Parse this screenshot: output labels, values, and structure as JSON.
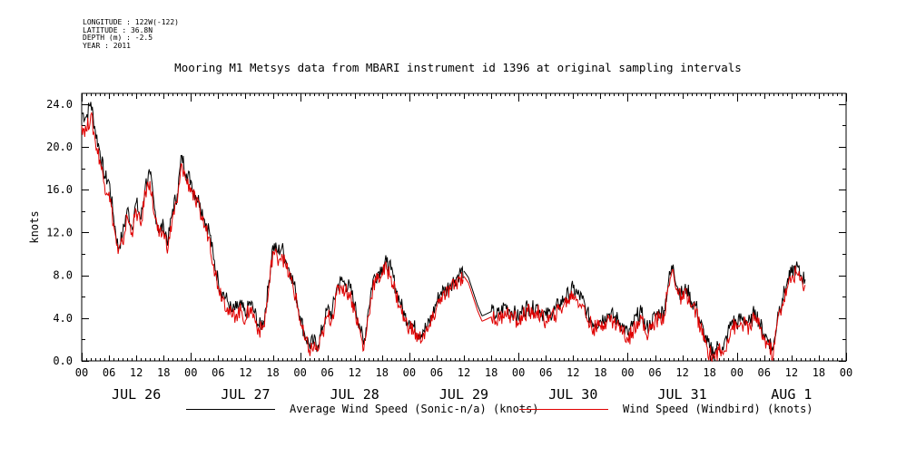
{
  "meta": {
    "longitude": "LONGITUDE : 122W(-122)",
    "latitude": "LATITUDE : 36.8N",
    "depth": "DEPTH (m) : -2.5",
    "year": "YEAR : 2011"
  },
  "chart_data": {
    "type": "line",
    "title": "Mooring M1 Metsys data from MBARI instrument id 1396 at original sampling intervals",
    "ylabel": "knots",
    "xlabel": "",
    "ylim": [
      0,
      25
    ],
    "xlim_hours": [
      0,
      168
    ],
    "y_ticks": [
      "0.0",
      "4.0",
      "8.0",
      "12.0",
      "16.0",
      "20.0",
      "24.0"
    ],
    "x_hour_labels": [
      "00",
      "06",
      "12",
      "18",
      "00",
      "06",
      "12",
      "18",
      "00",
      "06",
      "12",
      "18",
      "00",
      "06",
      "12",
      "18",
      "00",
      "06",
      "12",
      "18",
      "00",
      "06",
      "12",
      "18",
      "00",
      "06",
      "12",
      "18",
      "00"
    ],
    "day_labels": [
      "JUL 26",
      "JUL 27",
      "JUL 28",
      "JUL 29",
      "JUL 30",
      "JUL 31",
      "AUG  1"
    ],
    "grid": false,
    "legend_position": "bottom",
    "series": [
      {
        "name": "Average Wind Speed (Sonic-n/a) (knots)",
        "color": "#000000",
        "gaps": [
          [
            84,
            90
          ]
        ],
        "points": [
          [
            0,
            23.2
          ],
          [
            1,
            22.8
          ],
          [
            2,
            24.2
          ],
          [
            3,
            21.5
          ],
          [
            4,
            19.6
          ],
          [
            5,
            17.2
          ],
          [
            6,
            16.8
          ],
          [
            7,
            13.5
          ],
          [
            8,
            10.5
          ],
          [
            9,
            11.8
          ],
          [
            10,
            14.2
          ],
          [
            11,
            12.5
          ],
          [
            12,
            14.8
          ],
          [
            13,
            13.2
          ],
          [
            14,
            16.5
          ],
          [
            15,
            17.5
          ],
          [
            16,
            14.2
          ],
          [
            17,
            12.2
          ],
          [
            18,
            12.6
          ],
          [
            19,
            11.2
          ],
          [
            20,
            14.2
          ],
          [
            21,
            15.6
          ],
          [
            22,
            19.2
          ],
          [
            23,
            17.5
          ],
          [
            24,
            16.9
          ],
          [
            25,
            15.5
          ],
          [
            26,
            14.8
          ],
          [
            27,
            13.2
          ],
          [
            28,
            12.3
          ],
          [
            29,
            9.5
          ],
          [
            30,
            7.5
          ],
          [
            31,
            6.4
          ],
          [
            32,
            5.6
          ],
          [
            33,
            4.6
          ],
          [
            34,
            4.9
          ],
          [
            35,
            5.2
          ],
          [
            36,
            4.2
          ],
          [
            37,
            5.5
          ],
          [
            38,
            4.5
          ],
          [
            39,
            3.2
          ],
          [
            40,
            3.7
          ],
          [
            41,
            6.8
          ],
          [
            42,
            10.8
          ],
          [
            43,
            10.2
          ],
          [
            44,
            10.6
          ],
          [
            45,
            9.2
          ],
          [
            46,
            8.2
          ],
          [
            47,
            6.5
          ],
          [
            48,
            4.2
          ],
          [
            49,
            2.5
          ],
          [
            50,
            1.5
          ],
          [
            51,
            1.8
          ],
          [
            52,
            1.5
          ],
          [
            53,
            3.2
          ],
          [
            54,
            4.8
          ],
          [
            55,
            4.4
          ],
          [
            56,
            6.8
          ],
          [
            57,
            7.5
          ],
          [
            58,
            7.2
          ],
          [
            59,
            6.8
          ],
          [
            60,
            5.2
          ],
          [
            61,
            3.5
          ],
          [
            62,
            1.5
          ],
          [
            63,
            4.8
          ],
          [
            64,
            7.6
          ],
          [
            65,
            8.2
          ],
          [
            66,
            8.8
          ],
          [
            67,
            9.2
          ],
          [
            68,
            8.5
          ],
          [
            69,
            6.8
          ],
          [
            70,
            5.5
          ],
          [
            71,
            4.2
          ],
          [
            72,
            3.8
          ],
          [
            73,
            3.2
          ],
          [
            74,
            2.5
          ],
          [
            75,
            2.9
          ],
          [
            76,
            3.2
          ],
          [
            77,
            4.2
          ],
          [
            78,
            5.5
          ],
          [
            79,
            6.5
          ],
          [
            80,
            6.6
          ],
          [
            81,
            7.2
          ],
          [
            82,
            7.6
          ],
          [
            83,
            8.2
          ],
          [
            84,
            8.4
          ],
          [
            85,
            7.8
          ],
          [
            86,
            6.5
          ],
          [
            87,
            5.2
          ],
          [
            88,
            4.2
          ],
          [
            89,
            4.4
          ],
          [
            90,
            4.6
          ],
          [
            91,
            4.2
          ],
          [
            92,
            4.5
          ],
          [
            93,
            5.2
          ],
          [
            94,
            4.8
          ],
          [
            95,
            4.5
          ],
          [
            96,
            4.0
          ],
          [
            97,
            4.8
          ],
          [
            98,
            5.1
          ],
          [
            99,
            4.8
          ],
          [
            100,
            5.2
          ],
          [
            101,
            4.6
          ],
          [
            102,
            4.2
          ],
          [
            103,
            4.5
          ],
          [
            104,
            4.8
          ],
          [
            105,
            5.3
          ],
          [
            106,
            5.8
          ],
          [
            107,
            6.2
          ],
          [
            108,
            6.8
          ],
          [
            109,
            6.2
          ],
          [
            110,
            5.8
          ],
          [
            111,
            4.5
          ],
          [
            112,
            3.8
          ],
          [
            113,
            3.5
          ],
          [
            114,
            3.8
          ],
          [
            115,
            4.2
          ],
          [
            116,
            4.4
          ],
          [
            117,
            4.1
          ],
          [
            118,
            3.8
          ],
          [
            119,
            3.2
          ],
          [
            120,
            2.5
          ],
          [
            121,
            3.2
          ],
          [
            122,
            4.2
          ],
          [
            123,
            4.5
          ],
          [
            124,
            3.0
          ],
          [
            125,
            3.4
          ],
          [
            126,
            4.2
          ],
          [
            127,
            4.5
          ],
          [
            128,
            4.7
          ],
          [
            129,
            7.5
          ],
          [
            130,
            9.0
          ],
          [
            131,
            6.8
          ],
          [
            132,
            6.2
          ],
          [
            133,
            6.8
          ],
          [
            134,
            5.5
          ],
          [
            135,
            5.2
          ],
          [
            136,
            3.5
          ],
          [
            137,
            2.2
          ],
          [
            138,
            1.2
          ],
          [
            139,
            0.8
          ],
          [
            140,
            1.5
          ],
          [
            141,
            1.0
          ],
          [
            142,
            2.6
          ],
          [
            143,
            3.8
          ],
          [
            144,
            3.5
          ],
          [
            145,
            4.0
          ],
          [
            146,
            3.8
          ],
          [
            147,
            3.5
          ],
          [
            148,
            4.8
          ],
          [
            149,
            3.5
          ],
          [
            150,
            2.5
          ],
          [
            151,
            2.0
          ],
          [
            152,
            1.0
          ],
          [
            153,
            4.5
          ],
          [
            154,
            5.8
          ],
          [
            155,
            7.2
          ],
          [
            156,
            8.2
          ],
          [
            157,
            8.8
          ],
          [
            158,
            8.0
          ],
          [
            159,
            7.6
          ]
        ]
      },
      {
        "name": "Wind Speed (Windbird) (knots)",
        "color": "#e00000",
        "gaps": [
          [
            84,
            90
          ]
        ],
        "points": [
          [
            0,
            22.0
          ],
          [
            1,
            21.5
          ],
          [
            2,
            23.0
          ],
          [
            3,
            20.5
          ],
          [
            4,
            18.8
          ],
          [
            5,
            16.5
          ],
          [
            6,
            15.8
          ],
          [
            7,
            12.8
          ],
          [
            8,
            10.0
          ],
          [
            9,
            11.0
          ],
          [
            10,
            13.5
          ],
          [
            11,
            12.0
          ],
          [
            12,
            14.0
          ],
          [
            13,
            12.6
          ],
          [
            14,
            15.8
          ],
          [
            15,
            16.8
          ],
          [
            16,
            13.6
          ],
          [
            17,
            11.6
          ],
          [
            18,
            12.0
          ],
          [
            19,
            10.6
          ],
          [
            20,
            13.5
          ],
          [
            21,
            14.8
          ],
          [
            22,
            18.4
          ],
          [
            23,
            16.8
          ],
          [
            24,
            16.2
          ],
          [
            25,
            14.8
          ],
          [
            26,
            14.0
          ],
          [
            27,
            12.6
          ],
          [
            28,
            11.6
          ],
          [
            29,
            9.0
          ],
          [
            30,
            7.0
          ],
          [
            31,
            6.0
          ],
          [
            32,
            5.0
          ],
          [
            33,
            4.1
          ],
          [
            34,
            4.4
          ],
          [
            35,
            4.7
          ],
          [
            36,
            3.8
          ],
          [
            37,
            5.0
          ],
          [
            38,
            4.0
          ],
          [
            39,
            2.8
          ],
          [
            40,
            3.2
          ],
          [
            41,
            6.2
          ],
          [
            42,
            10.2
          ],
          [
            43,
            9.6
          ],
          [
            44,
            10.0
          ],
          [
            45,
            8.6
          ],
          [
            46,
            7.6
          ],
          [
            47,
            6.0
          ],
          [
            48,
            3.8
          ],
          [
            49,
            2.0
          ],
          [
            50,
            1.0
          ],
          [
            51,
            1.3
          ],
          [
            52,
            1.0
          ],
          [
            53,
            2.6
          ],
          [
            54,
            4.2
          ],
          [
            55,
            3.9
          ],
          [
            56,
            6.2
          ],
          [
            57,
            7.0
          ],
          [
            58,
            6.6
          ],
          [
            59,
            6.2
          ],
          [
            60,
            4.7
          ],
          [
            61,
            3.0
          ],
          [
            62,
            1.0
          ],
          [
            63,
            4.2
          ],
          [
            64,
            7.0
          ],
          [
            65,
            7.6
          ],
          [
            66,
            8.2
          ],
          [
            67,
            8.6
          ],
          [
            68,
            7.9
          ],
          [
            69,
            6.3
          ],
          [
            70,
            5.0
          ],
          [
            71,
            3.7
          ],
          [
            72,
            3.2
          ],
          [
            73,
            2.7
          ],
          [
            74,
            2.0
          ],
          [
            75,
            2.4
          ],
          [
            76,
            2.7
          ],
          [
            77,
            3.7
          ],
          [
            78,
            5.0
          ],
          [
            79,
            6.0
          ],
          [
            80,
            6.1
          ],
          [
            81,
            6.7
          ],
          [
            82,
            7.1
          ],
          [
            83,
            7.7
          ],
          [
            84,
            7.9
          ],
          [
            85,
            7.3
          ],
          [
            86,
            6.0
          ],
          [
            87,
            4.7
          ],
          [
            88,
            3.7
          ],
          [
            89,
            3.9
          ],
          [
            90,
            4.1
          ],
          [
            91,
            3.7
          ],
          [
            92,
            4.0
          ],
          [
            93,
            4.7
          ],
          [
            94,
            4.3
          ],
          [
            95,
            4.0
          ],
          [
            96,
            3.5
          ],
          [
            97,
            4.3
          ],
          [
            98,
            4.6
          ],
          [
            99,
            4.3
          ],
          [
            100,
            4.7
          ],
          [
            101,
            4.1
          ],
          [
            102,
            3.7
          ],
          [
            103,
            4.0
          ],
          [
            104,
            4.3
          ],
          [
            105,
            4.8
          ],
          [
            106,
            5.3
          ],
          [
            107,
            5.7
          ],
          [
            108,
            6.3
          ],
          [
            109,
            5.7
          ],
          [
            110,
            5.3
          ],
          [
            111,
            4.0
          ],
          [
            112,
            3.3
          ],
          [
            113,
            3.0
          ],
          [
            114,
            3.3
          ],
          [
            115,
            3.7
          ],
          [
            116,
            3.9
          ],
          [
            117,
            3.6
          ],
          [
            118,
            3.3
          ],
          [
            119,
            2.7
          ],
          [
            120,
            2.0
          ],
          [
            121,
            2.7
          ],
          [
            122,
            3.7
          ],
          [
            123,
            4.0
          ],
          [
            124,
            2.5
          ],
          [
            125,
            2.9
          ],
          [
            126,
            3.7
          ],
          [
            127,
            4.0
          ],
          [
            128,
            4.2
          ],
          [
            129,
            7.0
          ],
          [
            130,
            8.5
          ],
          [
            131,
            6.3
          ],
          [
            132,
            5.7
          ],
          [
            133,
            6.3
          ],
          [
            134,
            5.0
          ],
          [
            135,
            4.7
          ],
          [
            136,
            3.0
          ],
          [
            137,
            1.7
          ],
          [
            138,
            0.7
          ],
          [
            139,
            0.4
          ],
          [
            140,
            1.0
          ],
          [
            141,
            0.6
          ],
          [
            142,
            2.1
          ],
          [
            143,
            3.3
          ],
          [
            144,
            3.0
          ],
          [
            145,
            3.5
          ],
          [
            146,
            3.3
          ],
          [
            147,
            3.0
          ],
          [
            148,
            4.3
          ],
          [
            149,
            3.0
          ],
          [
            150,
            2.0
          ],
          [
            151,
            1.5
          ],
          [
            152,
            0.5
          ],
          [
            153,
            4.0
          ],
          [
            154,
            5.3
          ],
          [
            155,
            6.7
          ],
          [
            156,
            7.7
          ],
          [
            157,
            8.3
          ],
          [
            158,
            7.5
          ],
          [
            159,
            7.1
          ]
        ]
      }
    ]
  }
}
